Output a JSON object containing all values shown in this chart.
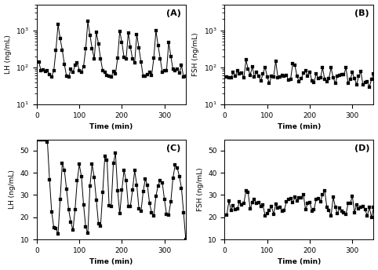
{
  "panel_A_label": "(A)",
  "panel_B_label": "(B)",
  "panel_C_label": "(C)",
  "panel_D_label": "(D)",
  "xlabel": "Time (min)",
  "ylabel_A": "LH (ng/mL)",
  "ylabel_B": "FSH (ng/mL)",
  "ylabel_C": "LH (ng/mL)",
  "ylabel_D": "FSH (ng/mL)",
  "xmax": 350,
  "xticks": [
    0,
    100,
    200,
    300
  ],
  "A_ylim": [
    10,
    5000
  ],
  "B_ylim": [
    10,
    5000
  ],
  "C_ylim": [
    10,
    55
  ],
  "D_ylim": [
    10,
    55
  ],
  "C_yticks": [
    10,
    20,
    30,
    40,
    50
  ],
  "D_yticks": [
    10,
    20,
    30,
    40,
    50
  ],
  "log_yticks": [
    10,
    100,
    1000
  ],
  "log_yticklabels": [
    "10^1",
    "10^2",
    "10^3"
  ],
  "line_color": "#000000",
  "marker": "s",
  "markersize": 2.2,
  "linewidth": 0.7,
  "background_color": "#ffffff",
  "figsize": [
    4.82,
    3.44
  ],
  "dpi": 100,
  "fontsize_label": 6.5,
  "fontsize_tick": 6.5,
  "fontsize_panel": 8
}
